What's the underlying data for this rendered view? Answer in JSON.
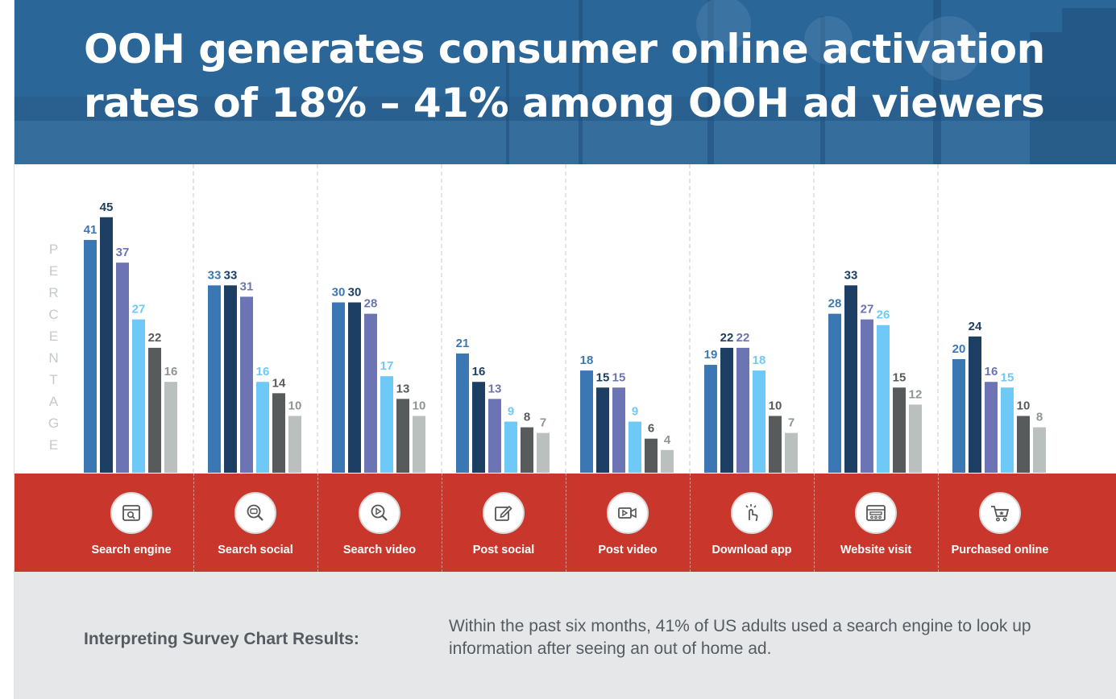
{
  "title_line1": "OOH generates consumer online activation",
  "title_line2": "rates of 18% – 41% among OOH ad viewers",
  "chart_data": {
    "type": "bar",
    "ylabel": "PERCENTAGE",
    "categories": [
      "Search engine",
      "Search social",
      "Search video",
      "Post social",
      "Post video",
      "Download app",
      "Website visit",
      "Purchased online"
    ],
    "series": [
      {
        "color": "#3b78b3",
        "label_color": "#3b78b3",
        "values": [
          41,
          33,
          30,
          21,
          18,
          19,
          28,
          20
        ]
      },
      {
        "color": "#1c3f63",
        "label_color": "#1c3f63",
        "values": [
          45,
          33,
          30,
          16,
          15,
          22,
          33,
          24
        ]
      },
      {
        "color": "#6c74b4",
        "label_color": "#6c74b4",
        "values": [
          37,
          31,
          28,
          13,
          15,
          22,
          27,
          16
        ]
      },
      {
        "color": "#6ec9f6",
        "label_color": "#6ec9f6",
        "values": [
          27,
          16,
          17,
          9,
          9,
          18,
          26,
          15
        ]
      },
      {
        "color": "#575b5b",
        "label_color": "#575b5b",
        "values": [
          22,
          14,
          13,
          8,
          6,
          10,
          15,
          10
        ]
      },
      {
        "color": "#b9c0bd",
        "label_color": "#8e9592",
        "values": [
          16,
          10,
          10,
          7,
          4,
          7,
          12,
          8
        ]
      }
    ],
    "ylim": [
      0,
      50
    ],
    "grid": false
  },
  "category_icons": [
    "search-engine-icon",
    "search-social-icon",
    "search-video-icon",
    "post-social-icon",
    "post-video-icon",
    "download-app-icon",
    "website-visit-icon",
    "purchased-online-icon"
  ],
  "colors": {
    "banner": "#2a6497",
    "category_band": "#c9372c",
    "footer_bg": "#e6e7e8"
  },
  "interpretation": {
    "label": "Interpreting Survey Chart Results:",
    "text": "Within the past six months, 41% of US adults used a search engine to look up information after seeing an out of home ad."
  }
}
